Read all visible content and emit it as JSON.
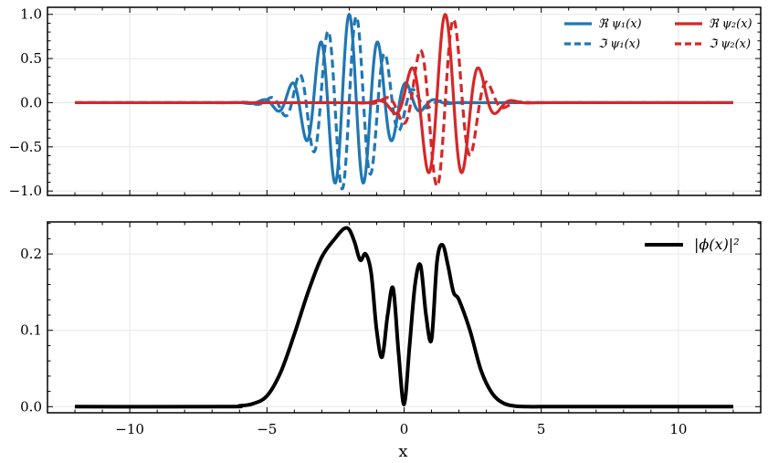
{
  "chart_data": [
    {
      "type": "line",
      "panel": "top",
      "xlim": [
        -13,
        13
      ],
      "ylim": [
        -1.05,
        1.08
      ],
      "x_ticks": [
        -10,
        -5,
        0,
        5,
        10
      ],
      "y_ticks": [
        1.0,
        0.5,
        0.0,
        -0.5,
        -1.0
      ],
      "y_tick_labels": [
        "1.0",
        "0.5",
        "0.0",
        "−0.5",
        "−1.0"
      ],
      "grid": true,
      "legend_position": "top-right",
      "legend_columns": 2,
      "series": [
        {
          "name": "ℜ ψ₁(x)",
          "color": "#1f77b4",
          "dash": "solid",
          "center": -2.0,
          "width": 1.2,
          "k": 6.0,
          "phase": 0.0,
          "part": "real",
          "peak": 1.0
        },
        {
          "name": "ℑ ψ₁(x)",
          "color": "#1f77b4",
          "dash": "dashed",
          "center": -2.0,
          "width": 1.2,
          "k": 6.0,
          "phase": 0.0,
          "part": "imag",
          "peak": 1.0
        },
        {
          "name": "ℜ ψ₂(x)",
          "color": "#d62728",
          "dash": "solid",
          "center": 1.5,
          "width": 0.9,
          "k": 5.0,
          "phase": 0.0,
          "part": "real",
          "peak": 1.0
        },
        {
          "name": "ℑ ψ₂(x)",
          "color": "#d62728",
          "dash": "dashed",
          "center": 1.5,
          "width": 0.9,
          "k": 5.0,
          "phase": 0.0,
          "part": "imag",
          "peak": 1.0
        }
      ]
    },
    {
      "type": "line",
      "panel": "bottom",
      "xlim": [
        -13,
        13
      ],
      "ylim": [
        -0.008,
        0.242
      ],
      "x_ticks": [
        -10,
        -5,
        0,
        5,
        10
      ],
      "x_tick_labels": [
        "−10",
        "−5",
        "0",
        "5",
        "10"
      ],
      "y_ticks": [
        0.2,
        0.1,
        0.0
      ],
      "y_tick_labels": [
        "0.2",
        "0.1",
        "0.0"
      ],
      "xlabel": "x",
      "grid": true,
      "legend_position": "top-right",
      "series": [
        {
          "name": "|ϕ(x)|²",
          "color": "#000000",
          "x": [
            -12,
            -6.5,
            -6,
            -5.5,
            -5,
            -4.5,
            -4,
            -3.5,
            -3,
            -2.5,
            -2.2,
            -2.0,
            -1.8,
            -1.6,
            -1.4,
            -1.2,
            -1.0,
            -0.8,
            -0.6,
            -0.4,
            -0.2,
            0.0,
            0.2,
            0.4,
            0.6,
            0.8,
            1.0,
            1.2,
            1.4,
            1.6,
            1.8,
            2.0,
            2.4,
            2.8,
            3.2,
            3.6,
            4.0,
            4.5,
            5.0,
            6.0,
            12
          ],
          "y": [
            0.0,
            0.0,
            0.001,
            0.004,
            0.014,
            0.045,
            0.095,
            0.15,
            0.196,
            0.221,
            0.233,
            0.232,
            0.215,
            0.192,
            0.2,
            0.175,
            0.1,
            0.065,
            0.12,
            0.155,
            0.07,
            0.003,
            0.08,
            0.16,
            0.185,
            0.12,
            0.088,
            0.19,
            0.212,
            0.185,
            0.15,
            0.14,
            0.1,
            0.048,
            0.018,
            0.005,
            0.001,
            0.0,
            0.0,
            0.0,
            0.0
          ]
        }
      ]
    }
  ]
}
